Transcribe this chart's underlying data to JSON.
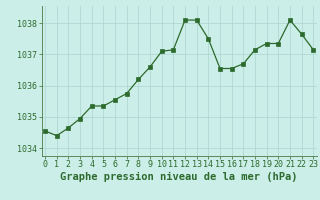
{
  "x": [
    0,
    1,
    2,
    3,
    4,
    5,
    6,
    7,
    8,
    9,
    10,
    11,
    12,
    13,
    14,
    15,
    16,
    17,
    18,
    19,
    20,
    21,
    22,
    23
  ],
  "y": [
    1034.55,
    1034.4,
    1034.65,
    1034.95,
    1035.35,
    1035.35,
    1035.55,
    1035.75,
    1036.2,
    1036.6,
    1037.1,
    1037.15,
    1038.1,
    1038.1,
    1037.5,
    1036.55,
    1036.55,
    1036.7,
    1037.15,
    1037.35,
    1037.35,
    1038.1,
    1037.65,
    1037.15
  ],
  "line_color": "#2d6a2d",
  "marker_color": "#2d6a2d",
  "bg_color": "#cceee8",
  "grid_color": "#aad4ce",
  "title": "Graphe pression niveau de la mer (hPa)",
  "ylabel_values": [
    1034,
    1035,
    1036,
    1037,
    1038
  ],
  "xlabel_values": [
    0,
    1,
    2,
    3,
    4,
    5,
    6,
    7,
    8,
    9,
    10,
    11,
    12,
    13,
    14,
    15,
    16,
    17,
    18,
    19,
    20,
    21,
    22,
    23
  ],
  "ylim": [
    1033.75,
    1038.55
  ],
  "xlim": [
    -0.3,
    23.3
  ],
  "title_fontsize": 7.5,
  "tick_fontsize": 6,
  "title_color": "#2d6a2d",
  "tick_color": "#2d6a2d",
  "axis_color": "#5a8a5a",
  "linewidth": 0.9,
  "markersize": 2.2
}
